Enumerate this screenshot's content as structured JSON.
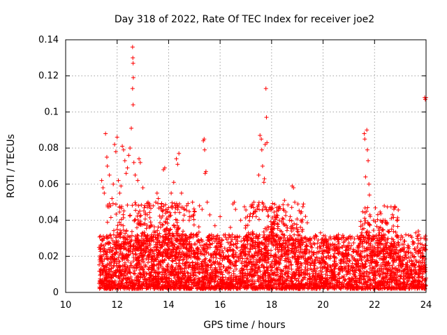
{
  "chart_data": {
    "type": "scatter",
    "title": "Day 318 of 2022, Rate Of TEC Index for receiver joe2",
    "xlabel": "GPS time / hours",
    "ylabel": "ROTI / TECUs",
    "xlim": [
      10,
      24
    ],
    "ylim": [
      0,
      0.14
    ],
    "x_ticks": [
      "10",
      "12",
      "14",
      "16",
      "18",
      "20",
      "22",
      "24"
    ],
    "y_ticks": [
      "0",
      "0.02",
      "0.04",
      "0.06",
      "0.08",
      "0.1",
      "0.12",
      "0.14"
    ],
    "grid": true,
    "marker": "plus",
    "color": "#ff0000",
    "series": [
      {
        "points": [
          [
            11.4,
            0.062
          ],
          [
            11.45,
            0.058
          ],
          [
            11.5,
            0.055
          ],
          [
            11.55,
            0.088
          ],
          [
            11.6,
            0.075
          ],
          [
            11.62,
            0.07
          ],
          [
            11.7,
            0.065
          ],
          [
            11.75,
            0.048
          ],
          [
            11.8,
            0.052
          ],
          [
            11.85,
            0.06
          ],
          [
            11.9,
            0.082
          ],
          [
            11.95,
            0.078
          ],
          [
            12.0,
            0.086
          ],
          [
            12.05,
            0.062
          ],
          [
            12.1,
            0.055
          ],
          [
            12.15,
            0.059
          ],
          [
            12.2,
            0.081
          ],
          [
            12.25,
            0.079
          ],
          [
            12.3,
            0.073
          ],
          [
            12.35,
            0.066
          ],
          [
            12.4,
            0.069
          ],
          [
            12.45,
            0.076
          ],
          [
            12.5,
            0.08
          ],
          [
            12.55,
            0.091
          ],
          [
            12.6,
            0.136
          ],
          [
            12.61,
            0.13
          ],
          [
            12.62,
            0.127
          ],
          [
            12.63,
            0.119
          ],
          [
            12.6,
            0.113
          ],
          [
            12.62,
            0.104
          ],
          [
            12.65,
            0.072
          ],
          [
            12.7,
            0.065
          ],
          [
            12.8,
            0.062
          ],
          [
            12.85,
            0.074
          ],
          [
            12.9,
            0.072
          ],
          [
            13.0,
            0.058
          ],
          [
            13.1,
            0.044
          ],
          [
            13.2,
            0.05
          ],
          [
            13.3,
            0.039
          ],
          [
            13.4,
            0.048
          ],
          [
            13.5,
            0.05
          ],
          [
            13.55,
            0.055
          ],
          [
            13.6,
            0.052
          ],
          [
            13.8,
            0.068
          ],
          [
            13.85,
            0.069
          ],
          [
            14.0,
            0.047
          ],
          [
            14.1,
            0.055
          ],
          [
            14.2,
            0.061
          ],
          [
            14.3,
            0.074
          ],
          [
            14.35,
            0.071
          ],
          [
            14.4,
            0.077
          ],
          [
            14.5,
            0.055
          ],
          [
            14.6,
            0.046
          ],
          [
            14.7,
            0.048
          ],
          [
            14.8,
            0.04
          ],
          [
            15.0,
            0.045
          ],
          [
            15.2,
            0.048
          ],
          [
            15.3,
            0.046
          ],
          [
            15.35,
            0.084
          ],
          [
            15.38,
            0.085
          ],
          [
            15.4,
            0.079
          ],
          [
            15.42,
            0.066
          ],
          [
            15.45,
            0.067
          ],
          [
            15.5,
            0.05
          ],
          [
            15.6,
            0.043
          ],
          [
            15.8,
            0.037
          ],
          [
            16.0,
            0.042
          ],
          [
            16.2,
            0.032
          ],
          [
            16.4,
            0.036
          ],
          [
            16.5,
            0.049
          ],
          [
            16.55,
            0.05
          ],
          [
            16.6,
            0.046
          ],
          [
            16.8,
            0.04
          ],
          [
            17.0,
            0.037
          ],
          [
            17.1,
            0.033
          ],
          [
            17.3,
            0.047
          ],
          [
            17.4,
            0.042
          ],
          [
            17.5,
            0.065
          ],
          [
            17.55,
            0.087
          ],
          [
            17.6,
            0.085
          ],
          [
            17.62,
            0.079
          ],
          [
            17.65,
            0.07
          ],
          [
            17.7,
            0.061
          ],
          [
            17.72,
            0.063
          ],
          [
            17.75,
            0.082
          ],
          [
            17.78,
            0.113
          ],
          [
            17.8,
            0.097
          ],
          [
            17.82,
            0.083
          ],
          [
            17.85,
            0.045
          ],
          [
            17.9,
            0.046
          ],
          [
            18.0,
            0.035
          ],
          [
            18.2,
            0.047
          ],
          [
            18.3,
            0.04
          ],
          [
            18.5,
            0.051
          ],
          [
            18.7,
            0.04
          ],
          [
            18.8,
            0.059
          ],
          [
            18.85,
            0.058
          ],
          [
            18.9,
            0.05
          ],
          [
            19.0,
            0.034
          ],
          [
            19.2,
            0.035
          ],
          [
            19.5,
            0.03
          ],
          [
            19.8,
            0.022
          ],
          [
            19.9,
            0.033
          ],
          [
            20.0,
            0.026
          ],
          [
            20.2,
            0.022
          ],
          [
            20.5,
            0.025
          ],
          [
            20.8,
            0.02
          ],
          [
            21.0,
            0.021
          ],
          [
            21.2,
            0.023
          ],
          [
            21.4,
            0.025
          ],
          [
            21.5,
            0.033
          ],
          [
            21.6,
            0.088
          ],
          [
            21.62,
            0.085
          ],
          [
            21.65,
            0.064
          ],
          [
            21.7,
            0.09
          ],
          [
            21.72,
            0.079
          ],
          [
            21.75,
            0.073
          ],
          [
            21.78,
            0.06
          ],
          [
            21.8,
            0.054
          ],
          [
            21.82,
            0.043
          ],
          [
            21.9,
            0.02
          ],
          [
            22.0,
            0.021
          ],
          [
            22.1,
            0.03
          ],
          [
            22.2,
            0.033
          ],
          [
            22.3,
            0.039
          ],
          [
            22.35,
            0.032
          ],
          [
            22.5,
            0.015
          ],
          [
            22.8,
            0.018
          ],
          [
            23.0,
            0.02
          ],
          [
            23.2,
            0.022
          ],
          [
            23.5,
            0.028
          ],
          [
            23.6,
            0.033
          ],
          [
            23.7,
            0.034
          ],
          [
            23.8,
            0.03
          ],
          [
            23.9,
            0.025
          ],
          [
            23.95,
            0.108
          ],
          [
            23.97,
            0.107
          ],
          [
            24.0,
            0.108
          ],
          [
            11.3,
            0.025
          ],
          [
            11.5,
            0.03
          ],
          [
            11.8,
            0.02
          ],
          [
            12.0,
            0.035
          ],
          [
            12.3,
            0.028
          ],
          [
            12.7,
            0.031
          ],
          [
            13.0,
            0.027
          ],
          [
            13.3,
            0.022
          ],
          [
            13.7,
            0.025
          ],
          [
            14.0,
            0.03
          ],
          [
            14.3,
            0.024
          ],
          [
            14.7,
            0.028
          ],
          [
            15.0,
            0.022
          ],
          [
            15.5,
            0.024
          ],
          [
            16.0,
            0.026
          ],
          [
            16.5,
            0.02
          ],
          [
            17.0,
            0.021
          ],
          [
            17.5,
            0.03
          ],
          [
            18.0,
            0.028
          ],
          [
            18.5,
            0.022
          ],
          [
            19.0,
            0.025
          ],
          [
            19.5,
            0.019
          ],
          [
            20.0,
            0.018
          ],
          [
            20.5,
            0.016
          ],
          [
            21.0,
            0.015
          ],
          [
            21.5,
            0.018
          ],
          [
            22.0,
            0.017
          ],
          [
            22.5,
            0.022
          ],
          [
            23.0,
            0.019
          ],
          [
            23.5,
            0.016
          ],
          [
            11.3,
            0.005
          ],
          [
            11.6,
            0.008
          ],
          [
            12.0,
            0.004
          ],
          [
            12.5,
            0.006
          ],
          [
            13.0,
            0.005
          ],
          [
            13.5,
            0.007
          ],
          [
            14.0,
            0.004
          ],
          [
            14.5,
            0.006
          ],
          [
            15.0,
            0.005
          ],
          [
            15.5,
            0.004
          ],
          [
            16.0,
            0.006
          ],
          [
            16.5,
            0.003
          ],
          [
            17.0,
            0.005
          ],
          [
            17.5,
            0.006
          ],
          [
            18.0,
            0.004
          ],
          [
            18.5,
            0.005
          ],
          [
            19.0,
            0.004
          ],
          [
            19.5,
            0.006
          ],
          [
            20.0,
            0.005
          ],
          [
            20.5,
            0.004
          ],
          [
            21.0,
            0.006
          ],
          [
            21.5,
            0.005
          ],
          [
            22.0,
            0.007
          ],
          [
            22.5,
            0.006
          ],
          [
            23.0,
            0.005
          ],
          [
            23.5,
            0.006
          ],
          [
            24.0,
            0.008
          ]
        ]
      }
    ],
    "dense_band": {
      "x_range": [
        11.3,
        24.0
      ],
      "y_range": [
        0.0,
        0.03
      ]
    }
  }
}
